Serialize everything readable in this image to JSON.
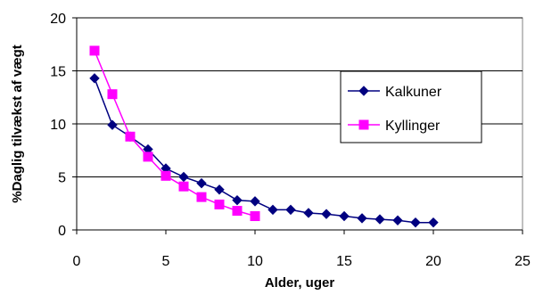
{
  "chart_data": {
    "type": "line",
    "title": "",
    "xlabel": "Alder, uger",
    "ylabel": "%Daglig tilvækst af vægt",
    "xlim": [
      0,
      25
    ],
    "ylim": [
      0,
      20
    ],
    "xticks": [
      0,
      5,
      10,
      15,
      20,
      25
    ],
    "yticks": [
      0,
      5,
      10,
      15,
      20
    ],
    "grid": "horizontal",
    "legend_position": "right",
    "series": [
      {
        "name": "Kalkuner",
        "color": "#000080",
        "marker": "diamond",
        "points": [
          [
            1,
            14.3
          ],
          [
            2,
            9.9
          ],
          [
            3,
            8.8
          ],
          [
            4,
            7.6
          ],
          [
            5,
            5.8
          ],
          [
            6,
            5.0
          ],
          [
            7,
            4.4
          ],
          [
            8,
            3.8
          ],
          [
            9,
            2.8
          ],
          [
            10,
            2.7
          ],
          [
            11,
            1.9
          ],
          [
            12,
            1.9
          ],
          [
            13,
            1.6
          ],
          [
            14,
            1.5
          ],
          [
            15,
            1.3
          ],
          [
            16,
            1.1
          ],
          [
            17,
            1.0
          ],
          [
            18,
            0.9
          ],
          [
            19,
            0.7
          ],
          [
            20,
            0.7
          ]
        ]
      },
      {
        "name": "Kyllinger",
        "color": "#ff00ff",
        "marker": "square",
        "points": [
          [
            1,
            16.9
          ],
          [
            2,
            12.8
          ],
          [
            3,
            8.8
          ],
          [
            4,
            6.9
          ],
          [
            5,
            5.1
          ],
          [
            6,
            4.1
          ],
          [
            7,
            3.1
          ],
          [
            8,
            2.4
          ],
          [
            9,
            1.8
          ],
          [
            10,
            1.3
          ]
        ]
      }
    ]
  }
}
